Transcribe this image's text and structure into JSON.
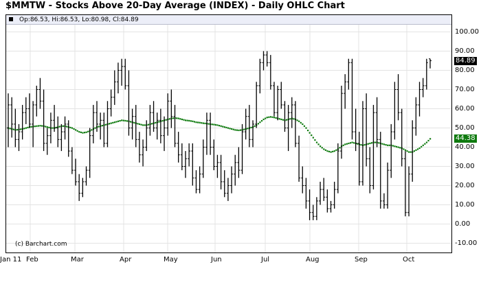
{
  "header": {
    "title": "$MMTW - Stocks Above 20-Day Average (INDEX) - Daily OHLC Chart"
  },
  "legend": {
    "text": "Op:86.53, Hi:86.53, Lo:80.98, Cl:84.89"
  },
  "watermark": "(c) Barchart.com",
  "colors": {
    "price": "#000000",
    "moving_average": "#0e7a0e",
    "legend_bar": "#eceef8",
    "grid": "#e3e3e3"
  },
  "chart_data": {
    "type": "ohlc",
    "title": "$MMTW - Stocks Above 20-Day Average (INDEX) - Daily OHLC Chart",
    "ylim": [
      -15,
      107
    ],
    "yticks": [
      "100.00",
      "90.00",
      "80.00",
      "70.00",
      "60.00",
      "50.00",
      "40.00",
      "30.00",
      "20.00",
      "10.00",
      "0.00",
      "-10.00"
    ],
    "xticks": [
      "Jan 11",
      "Feb",
      "Mar",
      "Apr",
      "May",
      "Jun",
      "Jul",
      "Aug",
      "Sep",
      "Oct"
    ],
    "grid": true,
    "last": {
      "open": 86.53,
      "high": 86.53,
      "low": 80.98,
      "close": 84.89,
      "close_label": "84.89",
      "ma": 44.38,
      "ma_label": "44.38"
    },
    "series": [
      {
        "kind": "ohlc",
        "values": [
          [
            50,
            68,
            40,
            62
          ],
          [
            62,
            66,
            45,
            52
          ],
          [
            52,
            60,
            40,
            44
          ],
          [
            44,
            52,
            38,
            48
          ],
          [
            48,
            62,
            44,
            58
          ],
          [
            58,
            66,
            52,
            60
          ],
          [
            60,
            68,
            50,
            52
          ],
          [
            52,
            64,
            40,
            62
          ],
          [
            62,
            72,
            56,
            70
          ],
          [
            70,
            76,
            60,
            64
          ],
          [
            64,
            70,
            38,
            42
          ],
          [
            42,
            50,
            36,
            46
          ],
          [
            46,
            58,
            42,
            54
          ],
          [
            54,
            62,
            48,
            50
          ],
          [
            50,
            56,
            40,
            44
          ],
          [
            44,
            52,
            38,
            48
          ],
          [
            48,
            56,
            44,
            52
          ],
          [
            52,
            54,
            35,
            38
          ],
          [
            38,
            40,
            26,
            28
          ],
          [
            28,
            34,
            20,
            22
          ],
          [
            22,
            26,
            12,
            16
          ],
          [
            16,
            24,
            14,
            22
          ],
          [
            22,
            30,
            20,
            28
          ],
          [
            28,
            50,
            24,
            46
          ],
          [
            46,
            62,
            42,
            58
          ],
          [
            58,
            64,
            48,
            52
          ],
          [
            52,
            58,
            44,
            54
          ],
          [
            54,
            58,
            40,
            42
          ],
          [
            42,
            64,
            40,
            60
          ],
          [
            60,
            70,
            56,
            66
          ],
          [
            66,
            80,
            62,
            74
          ],
          [
            74,
            84,
            68,
            80
          ],
          [
            80,
            86,
            72,
            82
          ],
          [
            82,
            86,
            70,
            72
          ],
          [
            72,
            80,
            46,
            50
          ],
          [
            50,
            60,
            44,
            56
          ],
          [
            56,
            62,
            40,
            44
          ],
          [
            44,
            48,
            32,
            36
          ],
          [
            36,
            44,
            30,
            40
          ],
          [
            40,
            54,
            38,
            50
          ],
          [
            50,
            62,
            46,
            58
          ],
          [
            58,
            64,
            48,
            50
          ],
          [
            50,
            58,
            44,
            54
          ],
          [
            54,
            60,
            42,
            46
          ],
          [
            46,
            56,
            38,
            50
          ],
          [
            50,
            68,
            46,
            64
          ],
          [
            64,
            70,
            50,
            56
          ],
          [
            56,
            62,
            40,
            42
          ],
          [
            42,
            48,
            32,
            36
          ],
          [
            36,
            42,
            28,
            30
          ],
          [
            30,
            38,
            24,
            34
          ],
          [
            34,
            42,
            30,
            38
          ],
          [
            38,
            42,
            20,
            24
          ],
          [
            24,
            28,
            16,
            18
          ],
          [
            18,
            30,
            16,
            26
          ],
          [
            26,
            44,
            24,
            40
          ],
          [
            40,
            58,
            36,
            54
          ],
          [
            54,
            58,
            36,
            40
          ],
          [
            40,
            44,
            28,
            30
          ],
          [
            30,
            36,
            24,
            32
          ],
          [
            32,
            36,
            18,
            22
          ],
          [
            22,
            28,
            14,
            16
          ],
          [
            16,
            24,
            12,
            20
          ],
          [
            20,
            30,
            16,
            26
          ],
          [
            26,
            36,
            20,
            32
          ],
          [
            32,
            40,
            24,
            28
          ],
          [
            28,
            52,
            26,
            48
          ],
          [
            48,
            60,
            44,
            56
          ],
          [
            56,
            62,
            40,
            44
          ],
          [
            44,
            54,
            40,
            52
          ],
          [
            52,
            74,
            50,
            72
          ],
          [
            72,
            86,
            68,
            84
          ],
          [
            84,
            90,
            80,
            88
          ],
          [
            88,
            90,
            82,
            84
          ],
          [
            84,
            88,
            70,
            72
          ],
          [
            72,
            74,
            56,
            58
          ],
          [
            58,
            72,
            54,
            70
          ],
          [
            70,
            74,
            60,
            62
          ],
          [
            62,
            64,
            48,
            50
          ],
          [
            50,
            62,
            38,
            58
          ],
          [
            58,
            66,
            50,
            62
          ],
          [
            62,
            64,
            40,
            42
          ],
          [
            42,
            46,
            22,
            24
          ],
          [
            24,
            30,
            16,
            20
          ],
          [
            20,
            24,
            8,
            12
          ],
          [
            12,
            18,
            2,
            6
          ],
          [
            6,
            10,
            2,
            4
          ],
          [
            4,
            14,
            2,
            12
          ],
          [
            12,
            22,
            10,
            18
          ],
          [
            18,
            24,
            12,
            14
          ],
          [
            14,
            18,
            6,
            8
          ],
          [
            8,
            12,
            6,
            10
          ],
          [
            10,
            22,
            8,
            18
          ],
          [
            18,
            42,
            16,
            38
          ],
          [
            38,
            72,
            34,
            68
          ],
          [
            68,
            78,
            60,
            74
          ],
          [
            74,
            86,
            70,
            84
          ],
          [
            84,
            86,
            44,
            48
          ],
          [
            48,
            60,
            38,
            42
          ],
          [
            42,
            48,
            20,
            22
          ],
          [
            22,
            64,
            20,
            60
          ],
          [
            60,
            68,
            30,
            34
          ],
          [
            34,
            40,
            16,
            20
          ],
          [
            20,
            62,
            18,
            58
          ],
          [
            58,
            66,
            40,
            44
          ],
          [
            44,
            48,
            8,
            12
          ],
          [
            12,
            16,
            8,
            10
          ],
          [
            10,
            32,
            8,
            28
          ],
          [
            28,
            52,
            24,
            48
          ],
          [
            48,
            74,
            44,
            70
          ],
          [
            70,
            78,
            54,
            58
          ],
          [
            58,
            60,
            30,
            34
          ],
          [
            34,
            38,
            4,
            6
          ],
          [
            6,
            30,
            4,
            26
          ],
          [
            26,
            54,
            22,
            50
          ],
          [
            50,
            66,
            46,
            62
          ],
          [
            62,
            74,
            56,
            70
          ],
          [
            70,
            76,
            66,
            72
          ],
          [
            72,
            86,
            70,
            84
          ],
          [
            86,
            86,
            81,
            85
          ]
        ]
      },
      {
        "kind": "moving-average",
        "values": [
          50,
          49.5,
          49,
          49.2,
          49.5,
          50,
          50.5,
          50.8,
          51,
          51.2,
          51,
          50.5,
          50,
          50,
          50.5,
          51,
          51,
          50.5,
          50,
          49,
          48,
          47.5,
          47.8,
          48.5,
          49.5,
          50.5,
          51,
          51.5,
          52,
          52.5,
          53,
          53.5,
          54,
          53.8,
          53.5,
          53,
          52.5,
          52,
          51.5,
          51.5,
          52,
          52.5,
          53,
          53.5,
          54,
          54.5,
          55,
          55.2,
          55,
          54.5,
          54,
          53.8,
          53.5,
          53,
          52.8,
          52.5,
          52.3,
          52,
          51.8,
          51.5,
          51,
          50.5,
          50,
          49.5,
          49,
          48.8,
          49,
          49.5,
          50,
          50.5,
          51.5,
          53,
          54.5,
          55.5,
          55.8,
          55.5,
          55,
          54.5,
          54,
          54.5,
          55,
          54.5,
          53.5,
          52,
          50,
          47.5,
          45,
          42.5,
          40.5,
          39,
          38,
          37.5,
          38,
          39,
          40.5,
          41.5,
          42,
          42.5,
          42,
          41.5,
          41,
          41.5,
          42,
          42.5,
          42.5,
          42,
          41.5,
          41,
          41,
          40.5,
          40,
          39.5,
          38.5,
          37.5,
          37.5,
          38.5,
          39.5,
          41,
          42.5,
          44.38
        ]
      }
    ]
  }
}
